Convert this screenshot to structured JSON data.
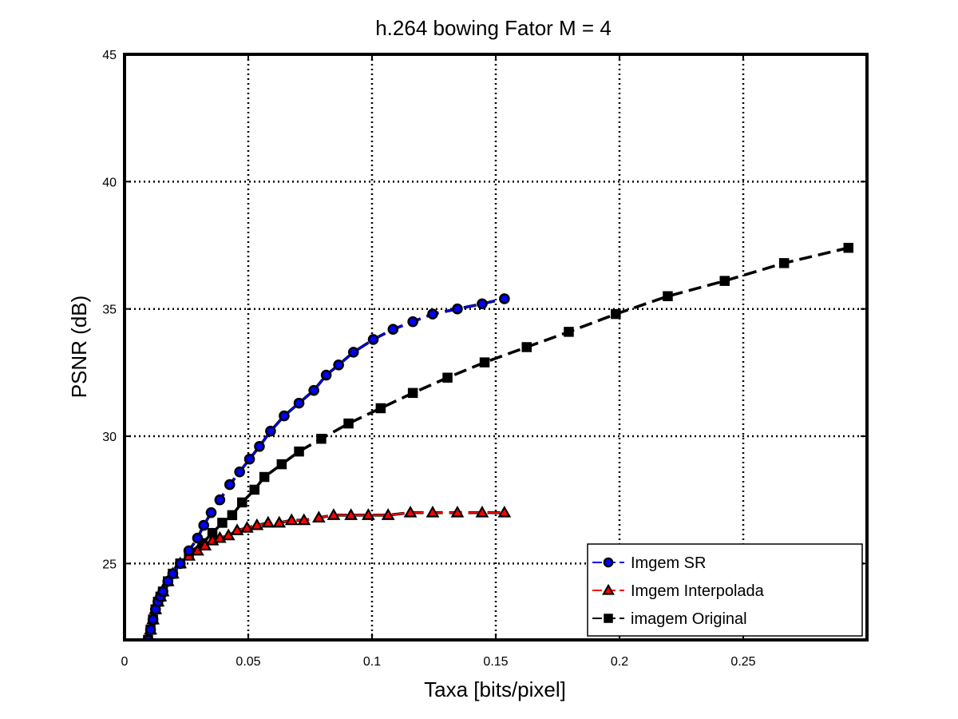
{
  "chart_data": {
    "type": "line",
    "title": "h.264 bowing Fator M = 4",
    "xlabel": "Taxa [bits/pixel]",
    "ylabel": "PSNR (dB)",
    "xlim": [
      0,
      0.3
    ],
    "ylim": [
      22,
      45
    ],
    "xticks": [
      0,
      0.05,
      0.1,
      0.15,
      0.2,
      0.25
    ],
    "yticks": [
      25,
      30,
      35,
      40,
      45
    ],
    "xtick_labels": [
      "0",
      "0.05",
      "0.1",
      "0.15",
      "0.2",
      "0.25"
    ],
    "ytick_labels": [
      "25",
      "30",
      "35",
      "40",
      "45"
    ],
    "grid": true,
    "legend_position": "bottom-right",
    "series": [
      {
        "name": "Imgem SR",
        "color": "#0000ff",
        "marker": "circle",
        "linestyle": "dashed",
        "x": [
          0.0095,
          0.0105,
          0.0115,
          0.0125,
          0.0135,
          0.0145,
          0.0155,
          0.0175,
          0.0195,
          0.0225,
          0.026,
          0.0295,
          0.032,
          0.035,
          0.0385,
          0.0425,
          0.0465,
          0.0505,
          0.0545,
          0.059,
          0.0645,
          0.0705,
          0.0765,
          0.0815,
          0.0865,
          0.0925,
          0.1005,
          0.1085,
          0.1165,
          0.1245,
          0.1345,
          0.1445,
          0.1535
        ],
        "y": [
          22.0,
          22.4,
          22.8,
          23.2,
          23.5,
          23.7,
          23.9,
          24.3,
          24.6,
          25.0,
          25.5,
          26.0,
          26.5,
          27.0,
          27.5,
          28.1,
          28.6,
          29.1,
          29.6,
          30.2,
          30.8,
          31.3,
          31.8,
          32.4,
          32.8,
          33.3,
          33.8,
          34.2,
          34.5,
          34.8,
          35.0,
          35.2,
          35.4
        ]
      },
      {
        "name": "Imgem Interpolada",
        "color": "#ff0000",
        "marker": "triangle",
        "linestyle": "dashed",
        "x": [
          0.0095,
          0.0105,
          0.0115,
          0.0125,
          0.0135,
          0.0145,
          0.0155,
          0.0175,
          0.0195,
          0.0225,
          0.026,
          0.0295,
          0.0325,
          0.0355,
          0.0385,
          0.042,
          0.0455,
          0.0495,
          0.0535,
          0.058,
          0.0625,
          0.0675,
          0.0725,
          0.0785,
          0.0845,
          0.0915,
          0.0985,
          0.1065,
          0.1155,
          0.1245,
          0.1345,
          0.1445,
          0.1535
        ],
        "y": [
          22.0,
          22.4,
          22.8,
          23.2,
          23.5,
          23.7,
          23.9,
          24.3,
          24.6,
          25.0,
          25.3,
          25.5,
          25.7,
          25.9,
          26.0,
          26.1,
          26.3,
          26.4,
          26.5,
          26.6,
          26.6,
          26.7,
          26.7,
          26.8,
          26.9,
          26.9,
          26.9,
          26.9,
          27.0,
          27.0,
          27.0,
          27.0,
          27.0
        ]
      },
      {
        "name": "imagem Original",
        "color": "#000000",
        "marker": "square",
        "linestyle": "dashed",
        "x": [
          0.0095,
          0.0105,
          0.0115,
          0.0125,
          0.0135,
          0.0145,
          0.0155,
          0.0175,
          0.0195,
          0.0225,
          0.026,
          0.0315,
          0.0355,
          0.0395,
          0.0435,
          0.0475,
          0.0525,
          0.0565,
          0.0635,
          0.0705,
          0.0795,
          0.0905,
          0.1035,
          0.1165,
          0.1305,
          0.1455,
          0.1625,
          0.1795,
          0.1985,
          0.2195,
          0.2425,
          0.2665,
          0.2925
        ],
        "y": [
          22.0,
          22.4,
          22.8,
          23.2,
          23.5,
          23.7,
          23.9,
          24.3,
          24.6,
          25.0,
          25.4,
          25.8,
          26.2,
          26.6,
          26.9,
          27.4,
          27.9,
          28.4,
          28.9,
          29.4,
          29.9,
          30.5,
          31.1,
          31.7,
          32.3,
          32.9,
          33.5,
          34.1,
          34.8,
          35.5,
          36.1,
          36.8,
          37.4
        ]
      }
    ]
  }
}
